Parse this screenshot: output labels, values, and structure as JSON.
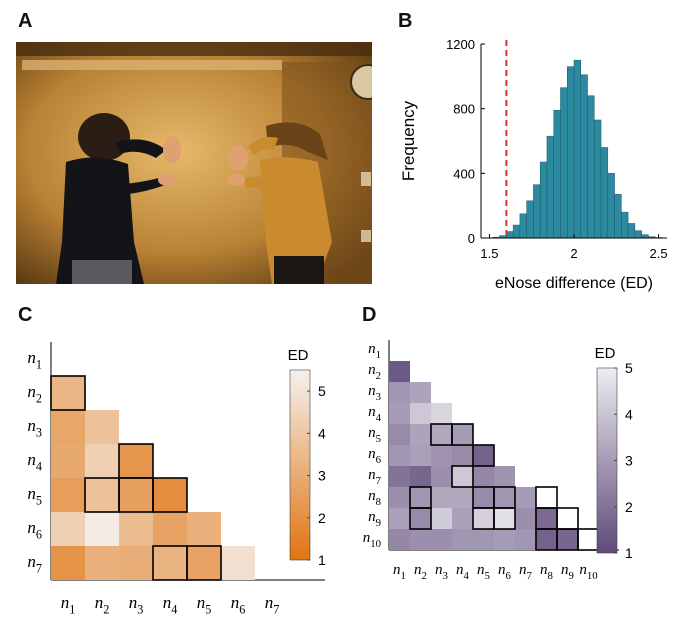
{
  "panels": {
    "a": "A",
    "b": "B",
    "c": "C",
    "d": "D"
  },
  "colors": {
    "teal": "#2c8aa0",
    "red_dashed": "#d9312f",
    "orange_low": "#e07411",
    "orange_high": "#f4f1ee",
    "purple_low": "#5e4a7a",
    "purple_high": "#eeedf1"
  },
  "chart_data": [
    {
      "panel": "B",
      "type": "bar",
      "xlabel": "eNose difference (ED)",
      "ylabel": "Frequency",
      "xlim": [
        1.45,
        2.55
      ],
      "ylim": [
        0,
        1200
      ],
      "xticks": [
        1.5,
        2,
        2.5
      ],
      "xtick_labels": [
        "1.5",
        "2",
        "2.5"
      ],
      "yticks": [
        0,
        400,
        800,
        1200
      ],
      "ytick_labels": [
        "0",
        "400",
        "800",
        "1200"
      ],
      "bin_width": 0.04,
      "bin_starts": [
        1.52,
        1.56,
        1.6,
        1.64,
        1.68,
        1.72,
        1.76,
        1.8,
        1.84,
        1.88,
        1.92,
        1.96,
        2.0,
        2.04,
        2.08,
        2.12,
        2.16,
        2.2,
        2.24,
        2.28,
        2.32,
        2.36,
        2.4,
        2.44,
        2.48
      ],
      "values": [
        5,
        15,
        40,
        80,
        150,
        230,
        330,
        470,
        630,
        790,
        930,
        1060,
        1100,
        1010,
        880,
        730,
        560,
        400,
        270,
        160,
        90,
        45,
        20,
        8,
        3
      ],
      "reference_line": {
        "x": 1.6,
        "style": "dashed",
        "color": "#d9312f"
      },
      "grid": false
    },
    {
      "panel": "C",
      "type": "heatmap",
      "shape": "lower-triangle",
      "row_labels": [
        {
          "b": "n",
          "s": "1"
        },
        {
          "b": "n",
          "s": "2"
        },
        {
          "b": "n",
          "s": "3"
        },
        {
          "b": "n",
          "s": "4"
        },
        {
          "b": "n",
          "s": "5"
        },
        {
          "b": "n",
          "s": "6"
        },
        {
          "b": "n",
          "s": "7"
        }
      ],
      "col_labels": [
        {
          "b": "n",
          "s": "1"
        },
        {
          "b": "n",
          "s": "2"
        },
        {
          "b": "n",
          "s": "3"
        },
        {
          "b": "n",
          "s": "4"
        },
        {
          "b": "n",
          "s": "5"
        },
        {
          "b": "n",
          "s": "6"
        },
        {
          "b": "n",
          "s": "7"
        }
      ],
      "values": [
        [
          null,
          null,
          null,
          null,
          null,
          null,
          null
        ],
        [
          3.4,
          null,
          null,
          null,
          null,
          null,
          null
        ],
        [
          2.8,
          3.8,
          null,
          null,
          null,
          null,
          null
        ],
        [
          2.9,
          4.3,
          2.2,
          null,
          null,
          null,
          null
        ],
        [
          2.5,
          3.8,
          2.6,
          1.9,
          null,
          null,
          null
        ],
        [
          4.3,
          5.3,
          3.6,
          2.7,
          3.2,
          null,
          null
        ],
        [
          2.1,
          3.2,
          3.1,
          3.3,
          2.7,
          4.9,
          null
        ]
      ],
      "highlighted": [
        [
          1,
          0
        ],
        [
          3,
          2
        ],
        [
          4,
          1
        ],
        [
          4,
          2
        ],
        [
          4,
          3
        ],
        [
          6,
          3
        ],
        [
          6,
          4
        ]
      ],
      "colorbar": {
        "label": "ED",
        "min": 1,
        "max": 5.5,
        "ticks": [
          1,
          2,
          3,
          4,
          5
        ],
        "tick_labels": [
          "1",
          "2",
          "3",
          "4",
          "5"
        ]
      }
    },
    {
      "panel": "D",
      "type": "heatmap",
      "shape": "lower-triangle",
      "row_labels": [
        {
          "b": "n",
          "s": "1"
        },
        {
          "b": "n",
          "s": "2"
        },
        {
          "b": "n",
          "s": "3"
        },
        {
          "b": "n",
          "s": "4"
        },
        {
          "b": "n",
          "s": "5"
        },
        {
          "b": "n",
          "s": "6"
        },
        {
          "b": "n",
          "s": "7"
        },
        {
          "b": "n",
          "s": "8"
        },
        {
          "b": "n",
          "s": "9"
        },
        {
          "b": "n",
          "s": "10"
        }
      ],
      "col_labels": [
        {
          "b": "n",
          "s": "1"
        },
        {
          "b": "n",
          "s": "2"
        },
        {
          "b": "n",
          "s": "3"
        },
        {
          "b": "n",
          "s": "4"
        },
        {
          "b": "n",
          "s": "5"
        },
        {
          "b": "n",
          "s": "6"
        },
        {
          "b": "n",
          "s": "7"
        },
        {
          "b": "n",
          "s": "8"
        },
        {
          "b": "n",
          "s": "9"
        },
        {
          "b": "n",
          "s": "10"
        }
      ],
      "values": [
        [
          null,
          null,
          null,
          null,
          null,
          null,
          null,
          null,
          null,
          null
        ],
        [
          1.4,
          null,
          null,
          null,
          null,
          null,
          null,
          null,
          null,
          null
        ],
        [
          2.9,
          3.2,
          null,
          null,
          null,
          null,
          null,
          null,
          null,
          null
        ],
        [
          3.0,
          4.1,
          4.4,
          null,
          null,
          null,
          null,
          null,
          null,
          null
        ],
        [
          2.6,
          3.2,
          3.3,
          3.0,
          null,
          null,
          null,
          null,
          null,
          null
        ],
        [
          2.9,
          3.1,
          2.8,
          2.6,
          1.6,
          null,
          null,
          null,
          null,
          null
        ],
        [
          2.0,
          1.7,
          2.7,
          4.1,
          2.5,
          2.8,
          null,
          null,
          null,
          null
        ],
        [
          2.7,
          2.9,
          3.3,
          3.3,
          2.6,
          2.9,
          3.0,
          null,
          null,
          null
        ],
        [
          3.1,
          2.6,
          4.2,
          3.1,
          4.3,
          4.7,
          2.7,
          1.8,
          null,
          null
        ],
        [
          2.5,
          2.7,
          2.7,
          2.9,
          2.9,
          3.0,
          2.9,
          1.6,
          1.7,
          null
        ]
      ],
      "highlighted": [
        [
          4,
          2
        ],
        [
          4,
          3
        ],
        [
          5,
          4
        ],
        [
          6,
          3
        ],
        [
          7,
          1
        ],
        [
          7,
          4
        ],
        [
          7,
          5
        ],
        [
          7,
          7
        ],
        [
          8,
          1
        ],
        [
          8,
          4
        ],
        [
          8,
          5
        ],
        [
          8,
          7
        ],
        [
          8,
          8
        ],
        [
          9,
          7
        ],
        [
          9,
          8
        ],
        [
          9,
          9
        ]
      ],
      "colorbar": {
        "label": "ED",
        "min": 1,
        "max": 5,
        "ticks": [
          1,
          2,
          3,
          4,
          5
        ],
        "tick_labels": [
          "1",
          "2",
          "3",
          "4",
          "5"
        ]
      }
    }
  ]
}
